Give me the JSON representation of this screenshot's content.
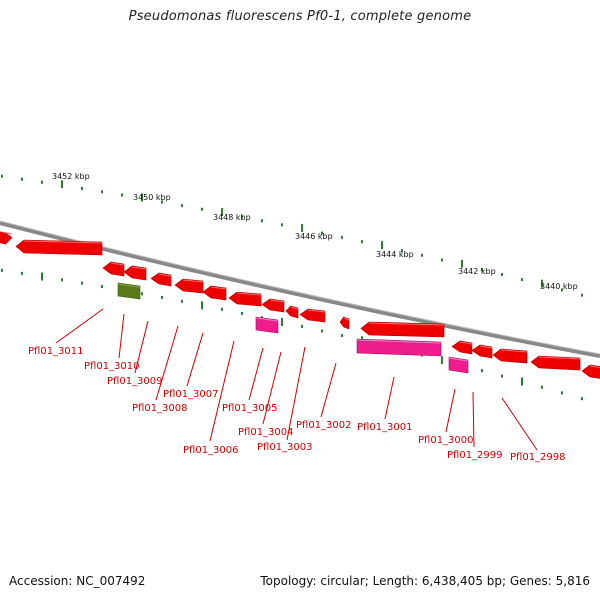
{
  "title": "Pseudomonas fluorescens Pf0-1, complete genome",
  "footer": {
    "accession": "Accession: NC_007492",
    "summary": "Topology: circular; Length: 6,438,405 bp; Genes: 5,816"
  },
  "scale_labels": [
    "3452 kbp",
    "3450 kbp",
    "3448 kbp",
    "3446 kbp",
    "3444 kbp",
    "3442 kbp",
    "3440 kbp"
  ],
  "gene_labels": [
    "Pfl01_3011",
    "Pfl01_3010",
    "Pfl01_3009",
    "Pfl01_3008",
    "Pfl01_3007",
    "Pfl01_3006",
    "Pfl01_3005",
    "Pfl01_3004",
    "Pfl01_3003",
    "Pfl01_3002",
    "Pfl01_3001",
    "Pfl01_3000",
    "Pfl01_2999",
    "Pfl01_2998"
  ],
  "colors": {
    "gene": "#ee0000",
    "gene_dark": "#aa0000",
    "pseudo": "#ee1c8c",
    "rna": "#5a7a1a",
    "backbone": "#888888",
    "tick": "#2e7d2e",
    "label": "#cc0000"
  }
}
